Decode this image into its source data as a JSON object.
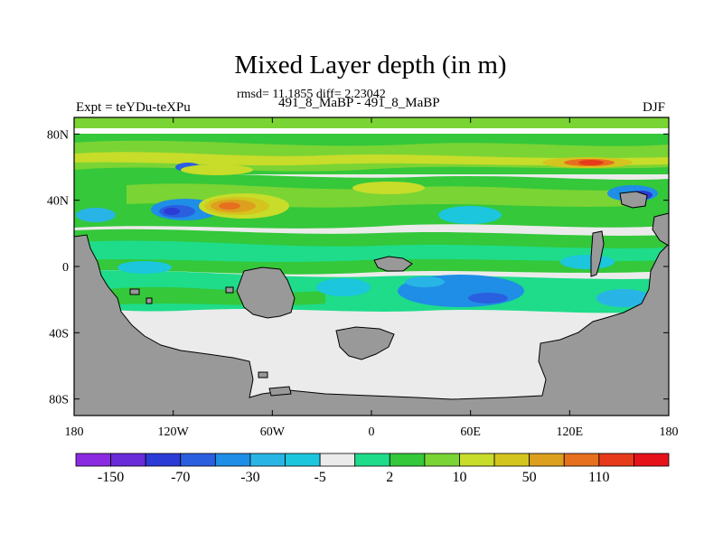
{
  "chart_data": {
    "type": "heatmap",
    "title": "Mixed Layer depth (in m)",
    "stats_line": "rmsd= 11.1855 diff= 2.23042",
    "experiment_names": "491_8_MaBP - 491_8_MaBP",
    "left_label": "Expt = teYDu-teXPu",
    "right_label": "DJF",
    "x_axis": {
      "min": -180,
      "max": 180,
      "ticks": [
        -180,
        -120,
        -60,
        0,
        60,
        120,
        180
      ],
      "tick_labels": [
        "180",
        "120W",
        "60W",
        "0",
        "60E",
        "120E",
        "180"
      ]
    },
    "y_axis": {
      "min": -90,
      "max": 90,
      "ticks": [
        80,
        40,
        0,
        -40,
        -80
      ],
      "tick_labels": [
        "80N",
        "40N",
        "0",
        "40S",
        "80S"
      ]
    },
    "colorbar": {
      "labels": [
        "-150",
        "-70",
        "-30",
        "-5",
        "2",
        "10",
        "50",
        "110"
      ],
      "colors": [
        "#8a2be2",
        "#6a2bd9",
        "#2b3bd6",
        "#2a5fe0",
        "#1f8ee6",
        "#28b5e6",
        "#1cc6dc",
        "#ebebeb",
        "#1edc8a",
        "#34c83a",
        "#7ad434",
        "#c8dc2a",
        "#d4c41e",
        "#dca01e",
        "#e6701e",
        "#e63a1a",
        "#e6121a"
      ]
    },
    "fields": {
      "ocean": "#ebebeb",
      "land": "#999999"
    }
  }
}
